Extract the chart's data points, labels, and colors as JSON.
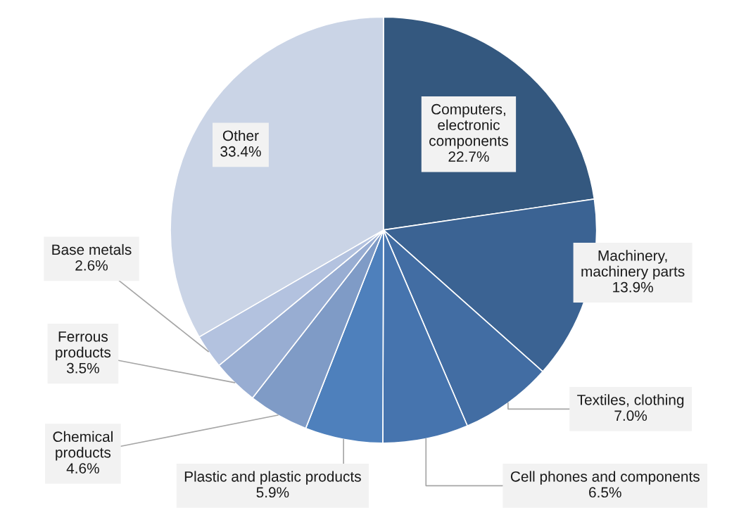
{
  "chart_data": {
    "type": "pie",
    "categories": [
      "Computers, electronic components",
      "Machinery, machinery parts",
      "Textiles, clothing",
      "Cell phones and components",
      "Plastic and plastic products",
      "Chemical products",
      "Ferrous products",
      "Base metals",
      "Other"
    ],
    "values": [
      22.7,
      13.9,
      7.0,
      6.5,
      5.9,
      4.6,
      3.5,
      2.6,
      33.4
    ],
    "colors": [
      "#34587f",
      "#3b6393",
      "#426da3",
      "#4674ae",
      "#4e80bc",
      "#7f9bc6",
      "#98add2",
      "#b3c2df",
      "#cad4e6"
    ],
    "value_labels": [
      "22.7%",
      "13.9%",
      "7.0%",
      "6.5%",
      "5.9%",
      "4.6%",
      "3.5%",
      "2.6%",
      "33.4%"
    ]
  }
}
